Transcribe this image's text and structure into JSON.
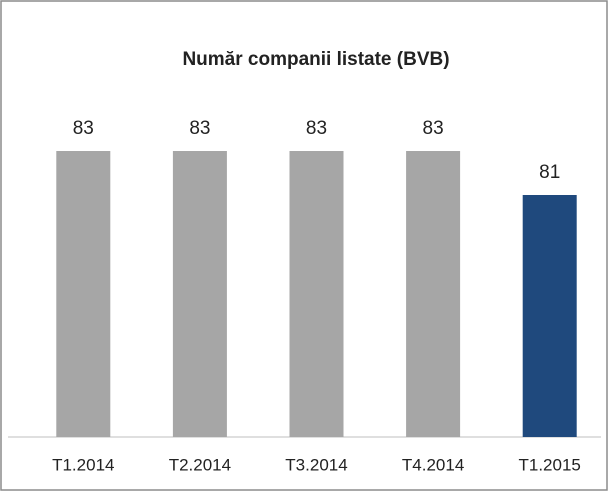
{
  "chart_data": {
    "type": "bar",
    "title": "Număr companii listate  (BVB)",
    "categories": [
      "T1.2014",
      "T2.2014",
      "T3.2014",
      "T4.2014",
      "T1.2015"
    ],
    "values": [
      83,
      83,
      83,
      83,
      81
    ],
    "colors": [
      "#a6a6a6",
      "#a6a6a6",
      "#a6a6a6",
      "#a6a6a6",
      "#1f497d"
    ],
    "ylim": [
      70,
      84
    ]
  }
}
